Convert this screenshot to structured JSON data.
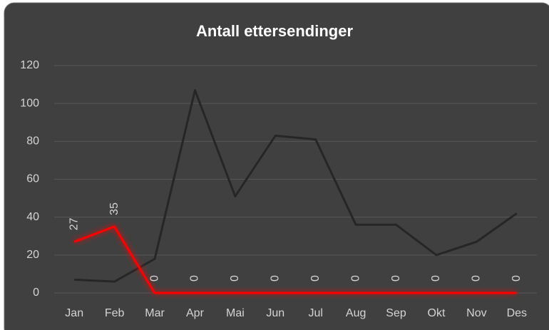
{
  "chart_data": {
    "type": "line",
    "title": "Antall ettersendinger",
    "categories": [
      "Jan",
      "Feb",
      "Mar",
      "Apr",
      "Mai",
      "Jun",
      "Jul",
      "Aug",
      "Sep",
      "Okt",
      "Nov",
      "Des"
    ],
    "series": [
      {
        "color": "#262626",
        "values": [
          7,
          6,
          18,
          107,
          51,
          83,
          81,
          36,
          36,
          20,
          27,
          42
        ],
        "data_labels": false
      },
      {
        "color": "#ff0000",
        "values": [
          27,
          35,
          0,
          0,
          0,
          0,
          0,
          0,
          0,
          0,
          0,
          0
        ],
        "data_labels": true,
        "glow": true
      }
    ],
    "ylim": [
      0,
      120
    ],
    "yticks": [
      0,
      20,
      40,
      60,
      80,
      100,
      120
    ],
    "grid": true
  }
}
